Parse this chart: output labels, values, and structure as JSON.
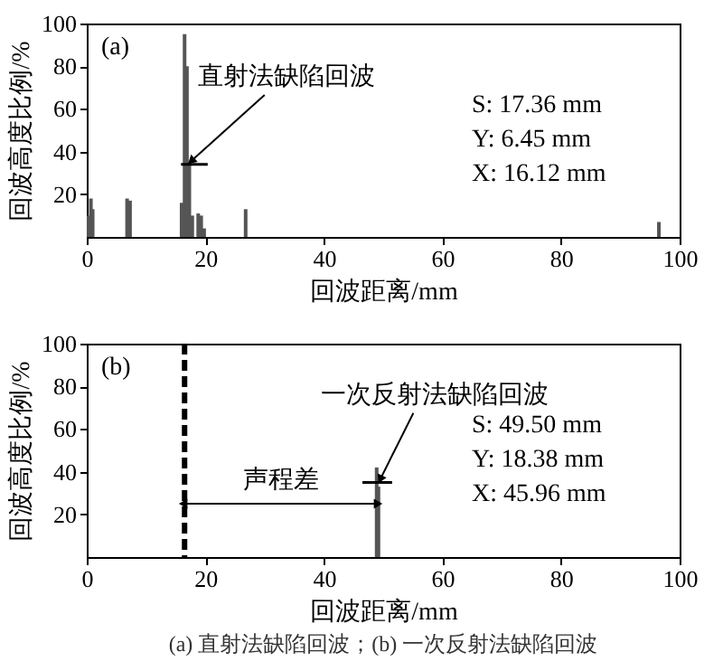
{
  "chart_data": [
    {
      "type": "bar",
      "xlabel": "回波距离/mm",
      "ylabel": "回波高度比例/%",
      "xlim": [
        0,
        100
      ],
      "ylim": [
        0,
        100
      ],
      "xticks": [
        0,
        20,
        40,
        60,
        80,
        100
      ],
      "yticks": [
        20,
        40,
        60,
        80,
        100
      ],
      "grid": false,
      "series": [
        {
          "color": "#555555",
          "x": [
            0.3,
            0.7,
            1.0,
            6.8,
            7.3,
            16.0,
            16.5,
            16.9,
            17.3,
            17.8,
            18.8,
            19.3,
            19.8,
            26.8,
            96.5
          ],
          "values": [
            10,
            18,
            13,
            18,
            17,
            16,
            95,
            80,
            35,
            10,
            11,
            10,
            4,
            13,
            7
          ]
        },
        {
          "type": "line",
          "color": "#000000",
          "x": [
            15.9,
            20.4
          ],
          "values": [
            34,
            34
          ]
        }
      ],
      "annotations": [
        "(a)",
        "S: 17.36 mm",
        "Y: 6.45 mm",
        "X: 16.12 mm",
        {
          "text": "直射法缺陷回波",
          "x": 17.8,
          "y": 36
        }
      ]
    },
    {
      "type": "bar",
      "title": "(a) 直射法缺陷回波；(b) 一次反射法缺陷回波",
      "xlabel": "回波距离/mm",
      "ylabel": "回波高度比例/%",
      "xlim": [
        0,
        100
      ],
      "ylim": [
        0,
        100
      ],
      "xticks": [
        0,
        20,
        40,
        60,
        80,
        100
      ],
      "yticks": [
        20,
        40,
        60,
        80,
        100
      ],
      "grid": false,
      "series": [
        {
          "color": "#555555",
          "x": [
            48.9,
            49.2
          ],
          "values": [
            42,
            33
          ]
        },
        {
          "type": "line",
          "color": "#000000",
          "x": [
            46.5,
            51.5
          ],
          "values": [
            35,
            35
          ]
        }
      ],
      "ref_lines": [
        {
          "axis": "x",
          "value": 16.5,
          "color": "#000000",
          "line_style": "dashed"
        }
      ],
      "annotations": [
        "(b)",
        "S: 49.50 mm",
        "Y: 18.38 mm",
        "X: 45.96 mm",
        "声程差",
        {
          "text": "一次反射法缺陷回波",
          "x": 49.6,
          "y": 37
        }
      ]
    }
  ]
}
